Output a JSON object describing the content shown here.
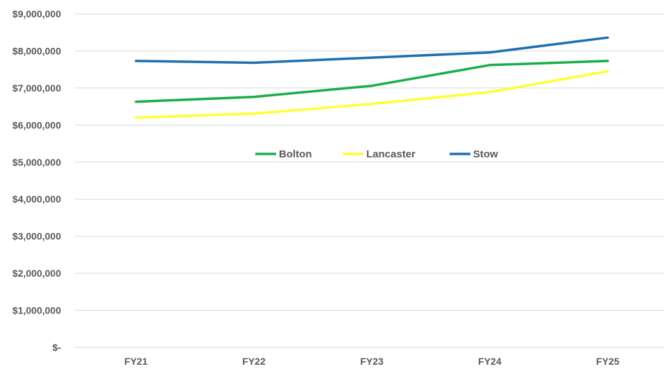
{
  "chart_data": {
    "type": "line",
    "categories": [
      "FY21",
      "FY22",
      "FY23",
      "FY24",
      "FY25"
    ],
    "series": [
      {
        "name": "Bolton",
        "color": "#1aad4b",
        "values": [
          6630000,
          6760000,
          7060000,
          7620000,
          7730000
        ]
      },
      {
        "name": "Lancaster",
        "color": "#ffff33",
        "values": [
          6200000,
          6310000,
          6570000,
          6890000,
          7450000
        ]
      },
      {
        "name": "Stow",
        "color": "#1f6fb0",
        "values": [
          7730000,
          7680000,
          7820000,
          7960000,
          8360000
        ]
      }
    ],
    "ylim": [
      0,
      9000000
    ],
    "ytick_values": [
      0,
      1000000,
      2000000,
      3000000,
      4000000,
      5000000,
      6000000,
      7000000,
      8000000,
      9000000
    ],
    "ytick_labels": [
      "$-",
      "$1,000,000",
      "$2,000,000",
      "$3,000,000",
      "$4,000,000",
      "$5,000,000",
      "$6,000,000",
      "$7,000,000",
      "$8,000,000",
      "$9,000,000"
    ],
    "grid": true,
    "legend_position": "inside-center"
  }
}
